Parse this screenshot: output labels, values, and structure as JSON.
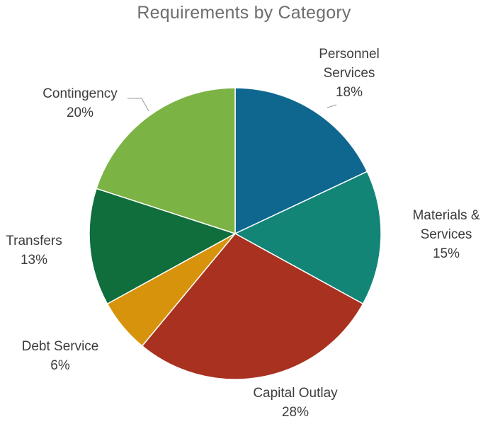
{
  "chart_data": {
    "type": "pie",
    "title": "Requirements by Category",
    "slices": [
      {
        "label_lines": [
          "Personnel",
          "Services"
        ],
        "value": 18,
        "value_text": "18%",
        "color": "#0f6790"
      },
      {
        "label_lines": [
          "Materials &",
          "Services"
        ],
        "value": 15,
        "value_text": "15%",
        "color": "#138577"
      },
      {
        "label_lines": [
          "Capital Outlay"
        ],
        "value": 28,
        "value_text": "28%",
        "color": "#a9311f"
      },
      {
        "label_lines": [
          "Debt Service"
        ],
        "value": 6,
        "value_text": "6%",
        "color": "#d8930c"
      },
      {
        "label_lines": [
          "Transfers"
        ],
        "value": 13,
        "value_text": "13%",
        "color": "#0f6e3c"
      },
      {
        "label_lines": [
          "Contingency"
        ],
        "value": 20,
        "value_text": "20%",
        "color": "#7cb345"
      }
    ],
    "legend": "none",
    "start_angle": "12 o'clock, clockwise"
  }
}
